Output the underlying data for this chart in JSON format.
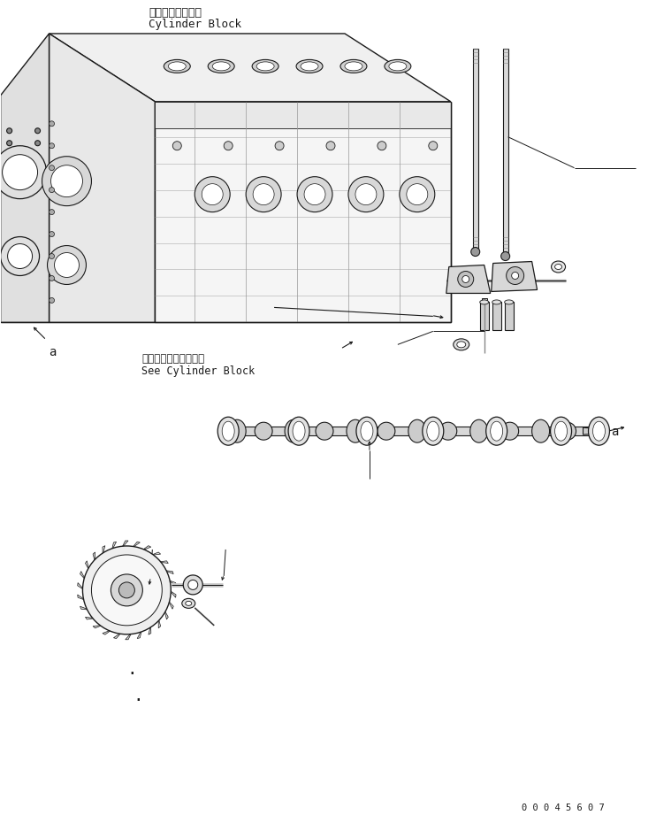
{
  "background_color": "#ffffff",
  "line_color": "#1a1a1a",
  "fill_light": "#f2f2f2",
  "fill_mid": "#dedede",
  "fill_dark": "#c8c8c8",
  "title_jp": "シリンダブロック",
  "title_en": "Cylinder Block",
  "label_jp": "シリンダブロック参照",
  "label_en": "See Cylinder Block",
  "part_number": "0 0 0 4 5 6 0 7",
  "figsize": [
    7.42,
    9.21
  ],
  "dpi": 100
}
